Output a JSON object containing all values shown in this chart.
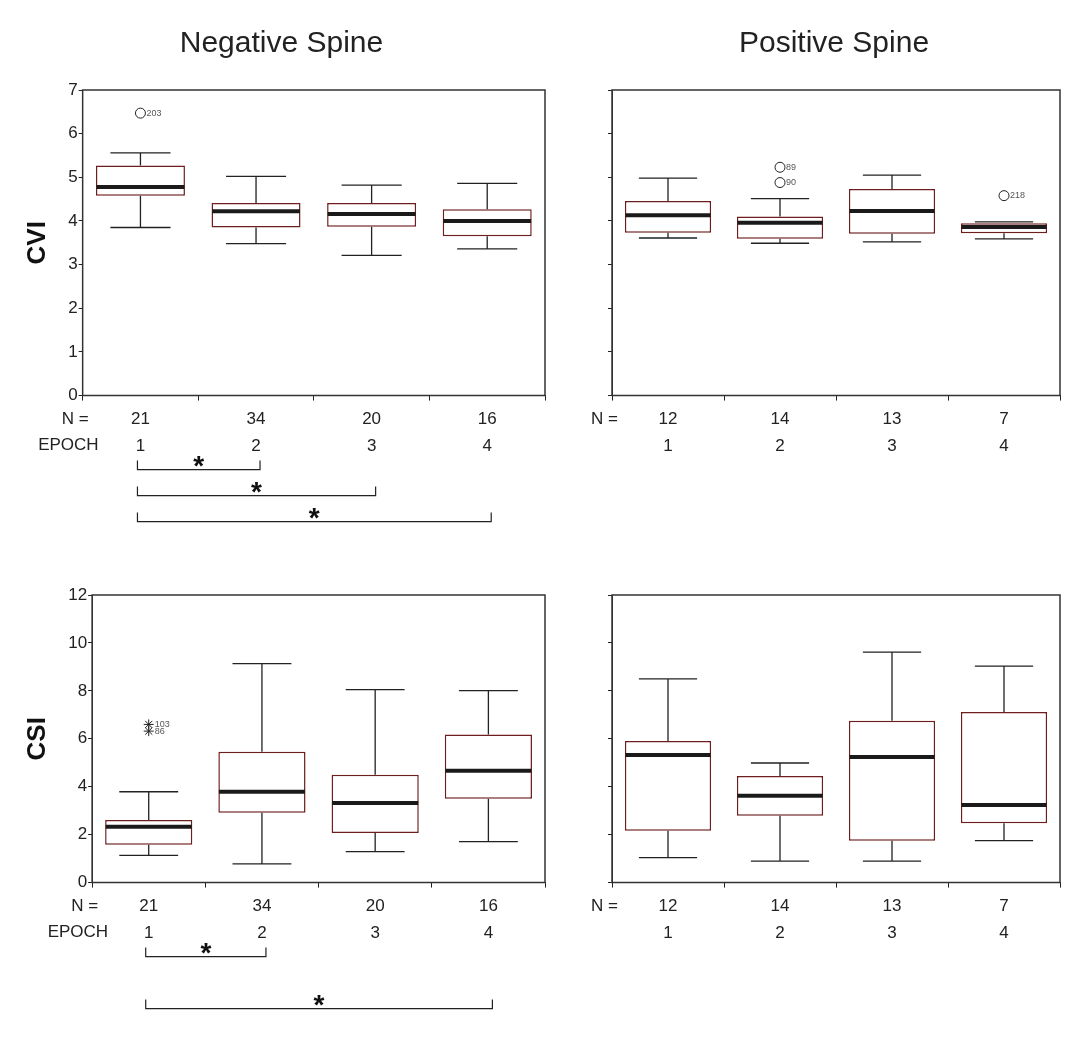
{
  "chart_data": [
    {
      "type": "box",
      "title": "Negative Spine",
      "ylabel": "CVI",
      "xlabel": "EPOCH",
      "categories": [
        "1",
        "2",
        "3",
        "4"
      ],
      "ylim": [
        0,
        7
      ],
      "yticks": [
        0,
        1,
        2,
        3,
        4,
        5,
        6,
        7
      ],
      "grid": false,
      "marker": "circle",
      "series": [
        {
          "color": "#6e1e1e",
          "boxes": [
            {
              "low": 3.85,
              "q1": 4.58,
              "median": 4.78,
              "q3": 5.27,
              "high": 5.56,
              "outliers": [
                6.47
              ]
            },
            {
              "low": 3.48,
              "q1": 3.85,
              "median": 4.22,
              "q3": 4.41,
              "high": 5.02
            },
            {
              "low": 3.21,
              "q1": 3.87,
              "median": 4.16,
              "q3": 4.41,
              "high": 4.82
            },
            {
              "low": 3.36,
              "q1": 3.65,
              "median": 4.0,
              "q3": 4.27,
              "high": 4.86
            }
          ]
        }
      ],
      "annotations": [
        "N =",
        "21",
        "34",
        "20",
        "16",
        "203",
        "*",
        "*",
        "*"
      ]
    },
    {
      "type": "box",
      "title": "Positive Spine",
      "categories": [
        "1",
        "2",
        "3",
        "4"
      ],
      "ylim": [
        0,
        7
      ],
      "yticks": [
        0,
        1,
        2,
        3,
        4,
        5,
        6,
        7
      ],
      "tick_labels": "x",
      "grid": false,
      "marker": "circle",
      "series": [
        {
          "color": "#6e1e1e",
          "boxes": [
            {
              "low": 3.61,
              "q1": 3.73,
              "median": 4.13,
              "q3": 4.46,
              "high": 4.98
            },
            {
              "low": 3.49,
              "q1": 3.59,
              "median": 3.96,
              "q3": 4.1,
              "high": 4.51,
              "outliers": [
                5.23,
                4.88
              ]
            },
            {
              "low": 3.52,
              "q1": 3.71,
              "median": 4.23,
              "q3": 4.73,
              "high": 5.05
            },
            {
              "low": 3.59,
              "q1": 3.72,
              "median": 3.86,
              "q3": 3.95,
              "high": 3.98,
              "outliers": [
                4.58
              ]
            }
          ]
        }
      ],
      "annotations": [
        "N =",
        "12",
        "14",
        "13",
        "7",
        "89",
        "90",
        "218"
      ]
    },
    {
      "type": "box",
      "ylabel": "CSI",
      "xlabel": "EPOCH",
      "categories": [
        "1",
        "2",
        "3",
        "4"
      ],
      "ylim": [
        0,
        12
      ],
      "yticks": [
        0,
        2,
        4,
        6,
        8,
        10,
        12
      ],
      "grid": false,
      "marker": "star",
      "series": [
        {
          "color": "#6e1e1e",
          "boxes": [
            {
              "low": 1.14,
              "q1": 1.58,
              "median": 2.33,
              "q3": 2.61,
              "high": 3.79,
              "outliers": [
                6.6,
                6.32
              ]
            },
            {
              "low": 0.78,
              "q1": 2.91,
              "median": 3.79,
              "q3": 5.46,
              "high": 9.14
            },
            {
              "low": 1.29,
              "q1": 2.07,
              "median": 3.32,
              "q3": 4.5,
              "high": 8.05
            },
            {
              "low": 1.71,
              "q1": 3.5,
              "median": 4.67,
              "q3": 6.18,
              "high": 8.01
            }
          ]
        }
      ],
      "annotations": [
        "N =",
        "21",
        "34",
        "20",
        "16",
        "103",
        "86",
        "*",
        "*"
      ]
    },
    {
      "type": "box",
      "categories": [
        "1",
        "2",
        "3",
        "4"
      ],
      "ylim": [
        0,
        12
      ],
      "yticks": [
        0,
        2,
        4,
        6,
        8,
        10,
        12
      ],
      "tick_labels": "x",
      "grid": false,
      "series": [
        {
          "color": "#6e1e1e",
          "boxes": [
            {
              "low": 1.04,
              "q1": 2.16,
              "median": 5.32,
              "q3": 5.91,
              "high": 8.5
            },
            {
              "low": 0.9,
              "q1": 2.79,
              "median": 3.62,
              "q3": 4.45,
              "high": 4.99
            },
            {
              "low": 0.9,
              "q1": 1.75,
              "median": 5.24,
              "q3": 6.75,
              "high": 9.62
            },
            {
              "low": 1.75,
              "q1": 2.48,
              "median": 3.24,
              "q3": 7.12,
              "high": 9.03
            }
          ]
        }
      ],
      "annotations": [
        "N =",
        "12",
        "14",
        "13",
        "7"
      ]
    }
  ]
}
